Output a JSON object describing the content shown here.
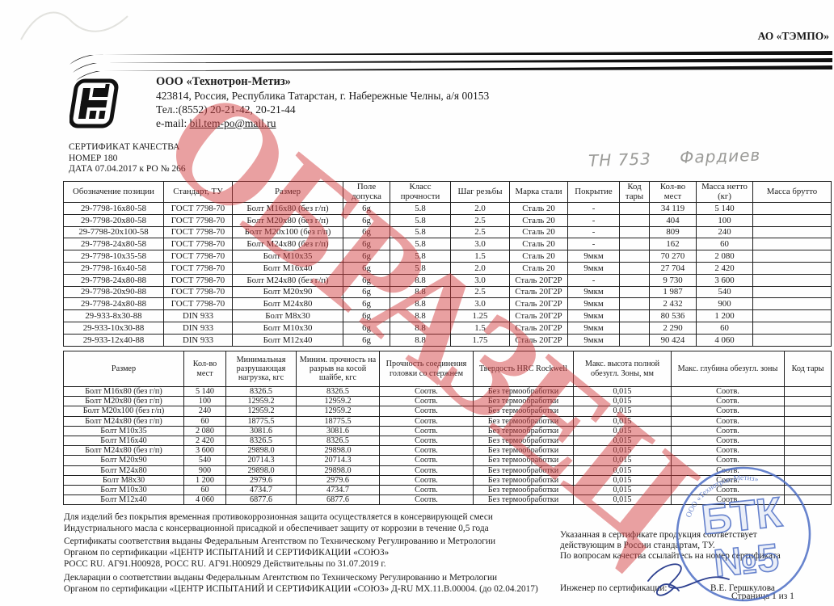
{
  "recipient": "АО «ТЭМПО»",
  "header": {
    "company_name": "ООО «Технотрон-Метиз»",
    "address": "423814, Россия, Республика Татарстан,  г. Набережные Челны, а/я 00153",
    "phone": "Тел.:(8552) 20-21-42, 20-21-44",
    "email_label": "e-mail:",
    "email": "bil.tem-po@mail.ru"
  },
  "certificate": {
    "title": "СЕРТИФИКАТ КАЧЕСТВА",
    "number_line": "НОМЕР 180",
    "date_line": "ДАТА 07.04.2017  к РО № 266"
  },
  "annotations": {
    "watermark": "ОБРАЗЕЦ",
    "handwritten_note": "ТН 753",
    "handwritten_name": "Фардиев",
    "stamp": {
      "org": "ООО «Технотрон-Метиз»",
      "line1": "БТК",
      "line2": "№5"
    }
  },
  "colors": {
    "watermark_red": "#d33a3c",
    "stamp_blue": "#4d6ec5",
    "signature_blue": "#2c3f8f",
    "pencil_gray": "#9b9b98"
  },
  "table1": {
    "headers": [
      "Обозначение позиции",
      "Стандарт, ТУ",
      "Размер",
      "Поле допуска",
      "Класс прочности",
      "Шаг резьбы",
      "Марка стали",
      "Покрытие",
      "Код тары",
      "Кол-во мест",
      "Масса нетто (кг)",
      "Масса брутто"
    ],
    "rows": [
      [
        "29-7798-16х80-58",
        "ГОСТ 7798-70",
        "Болт М16х80 (без г/п)",
        "6g",
        "5.8",
        "2.0",
        "Сталь 20",
        "-",
        "",
        "34 119",
        "5 140",
        ""
      ],
      [
        "29-7798-20х80-58",
        "ГОСТ 7798-70",
        "Болт М20х80 (без г/п)",
        "6g",
        "5.8",
        "2.5",
        "Сталь 20",
        "-",
        "",
        "404",
        "100",
        ""
      ],
      [
        "29-7798-20х100-58",
        "ГОСТ 7798-70",
        "Болт М20х100 (без г/п)",
        "6g",
        "5.8",
        "2.5",
        "Сталь 20",
        "-",
        "",
        "809",
        "240",
        ""
      ],
      [
        "29-7798-24х80-58",
        "ГОСТ 7798-70",
        "Болт М24х80 (без г/п)",
        "6g",
        "5.8",
        "3.0",
        "Сталь 20",
        "-",
        "",
        "162",
        "60",
        ""
      ],
      [
        "29-7798-10х35-58",
        "ГОСТ 7798-70",
        "Болт М10х35",
        "6g",
        "5.8",
        "1.5",
        "Сталь 20",
        "9мкм",
        "",
        "70 270",
        "2 080",
        ""
      ],
      [
        "29-7798-16х40-58",
        "ГОСТ 7798-70",
        "Болт М16х40",
        "6g",
        "5.8",
        "2.0",
        "Сталь 20",
        "9мкм",
        "",
        "27 704",
        "2 420",
        ""
      ],
      [
        "29-7798-24х80-88",
        "ГОСТ 7798-70",
        "Болт М24х80 (без г/п)",
        "6g",
        "8.8",
        "3.0",
        "Сталь 20Г2Р",
        "-",
        "",
        "9 730",
        "3 600",
        ""
      ],
      [
        "29-7798-20х90-88",
        "ГОСТ 7798-70",
        "Болт М20х90",
        "6g",
        "8.8",
        "2.5",
        "Сталь 20Г2Р",
        "9мкм",
        "",
        "1 987",
        "540",
        ""
      ],
      [
        "29-7798-24х80-88",
        "ГОСТ 7798-70",
        "Болт М24х80",
        "6g",
        "8.8",
        "3.0",
        "Сталь 20Г2Р",
        "9мкм",
        "",
        "2 432",
        "900",
        ""
      ],
      [
        "29-933-8х30-88",
        "DIN 933",
        "Болт М8х30",
        "6g",
        "8.8",
        "1.25",
        "Сталь 20Г2Р",
        "9мкм",
        "",
        "80 536",
        "1 200",
        ""
      ],
      [
        "29-933-10х30-88",
        "DIN 933",
        "Болт М10х30",
        "6g",
        "8.8",
        "1.5",
        "Сталь 20Г2Р",
        "9мкм",
        "",
        "2 290",
        "60",
        ""
      ],
      [
        "29-933-12х40-88",
        "DIN 933",
        "Болт М12х40",
        "6g",
        "8.8",
        "1.75",
        "Сталь 20Г2Р",
        "9мкм",
        "",
        "90 424",
        "4 060",
        ""
      ]
    ]
  },
  "table2": {
    "headers": [
      "Размер",
      "Кол-во мест",
      "Минимальная разрушающая нагрузка, кгс",
      "Миним. прочность на разрыв на косой шайбе, кгс",
      "Прочность соединения головки со стержнем",
      "Твердость HRC Rockwell",
      "Макс. высота полной обезугл. Зоны, мм",
      "Макс. глубина обезугл. зоны",
      "Код тары"
    ],
    "rows": [
      [
        "Болт М16х80 (без г/п)",
        "5 140",
        "8326.5",
        "8326.5",
        "Соотв.",
        "Без термообработки",
        "0,015",
        "Соотв.",
        ""
      ],
      [
        "Болт М20х80 (без г/п)",
        "100",
        "12959.2",
        "12959.2",
        "Соотв.",
        "Без термообработки",
        "0,015",
        "Соотв.",
        ""
      ],
      [
        "Болт М20х100 (без г/п)",
        "240",
        "12959.2",
        "12959.2",
        "Соотв.",
        "Без термообработки",
        "0,015",
        "Соотв.",
        ""
      ],
      [
        "Болт М24х80 (без г/п)",
        "60",
        "18775.5",
        "18775.5",
        "Соотв.",
        "Без термообработки",
        "0,015",
        "Соотв.",
        ""
      ],
      [
        "Болт М10х35",
        "2 080",
        "3081.6",
        "3081.6",
        "Соотв.",
        "Без термообработки",
        "0,015",
        "Соотв.",
        ""
      ],
      [
        "Болт М16х40",
        "2 420",
        "8326.5",
        "8326.5",
        "Соотв.",
        "Без термообработки",
        "0,015",
        "Соотв.",
        ""
      ],
      [
        "Болт М24х80 (без г/п)",
        "3 600",
        "29898.0",
        "29898.0",
        "Соотв.",
        "Без термообработки",
        "0,015",
        "Соотв.",
        ""
      ],
      [
        "Болт М20х90",
        "540",
        "20714.3",
        "20714.3",
        "Соотв.",
        "Без термообработки",
        "0,015",
        "Соотв.",
        ""
      ],
      [
        "Болт М24х80",
        "900",
        "29898.0",
        "29898.0",
        "Соотв.",
        "Без термообработки",
        "0,015",
        "Соотв.",
        ""
      ],
      [
        "Болт М8х30",
        "1 200",
        "2979.6",
        "2979.6",
        "Соотв.",
        "Без термообработки",
        "0,015",
        "Соотв.",
        ""
      ],
      [
        "Болт М10х30",
        "60",
        "4734.7",
        "4734.7",
        "Соотв.",
        "Без термообработки",
        "0,015",
        "Соотв.",
        ""
      ],
      [
        "Болт М12х40",
        "4 060",
        "6877.6",
        "6877.6",
        "Соотв.",
        "Без термообработки",
        "0,015",
        "Соотв.",
        ""
      ]
    ]
  },
  "footer": {
    "left_lines": [
      "Для изделий без покрытия временная противокоррозионная защита осуществляется в консервирующей смеси",
      "Индустриального масла с консервационной присадкой и обеспечивает защиту от коррозии в течение 0,5 года",
      "Сертификаты соответствия выданы Федеральным Агентством по Техническому Регулированию и Метрологии",
      "Органом по сертификации «ЦЕНТР ИСПЫТАНИЙ И СЕРТИФИКАЦИИ «СОЮЗ»",
      "РОСС RU. АГ91.Н00928,  РОСС RU. АГ91.Н00929 Действительны по 31.07.2019 г.",
      "Декларации о соответствии выданы Федеральным Агентством по Техническому Регулированию и Метрологии",
      "Органом по сертификации «ЦЕНТР ИСПЫТАНИЙ И СЕРТИФИКАЦИИ «СОЮЗ» Д-RU МХ.11.В.00004. (до 02.04.2017)"
    ],
    "right_lines": [
      "Указанная в сертификате продукция соответствует",
      "действующим в России стандартам, ТУ.",
      "По вопросам качества ссылайтесь на номер сертификата"
    ],
    "engineer_label": "Инженер по сертификации:",
    "engineer_name": "В.Е. Гершкулова",
    "page_indicator": "Страница 1 из 1"
  }
}
